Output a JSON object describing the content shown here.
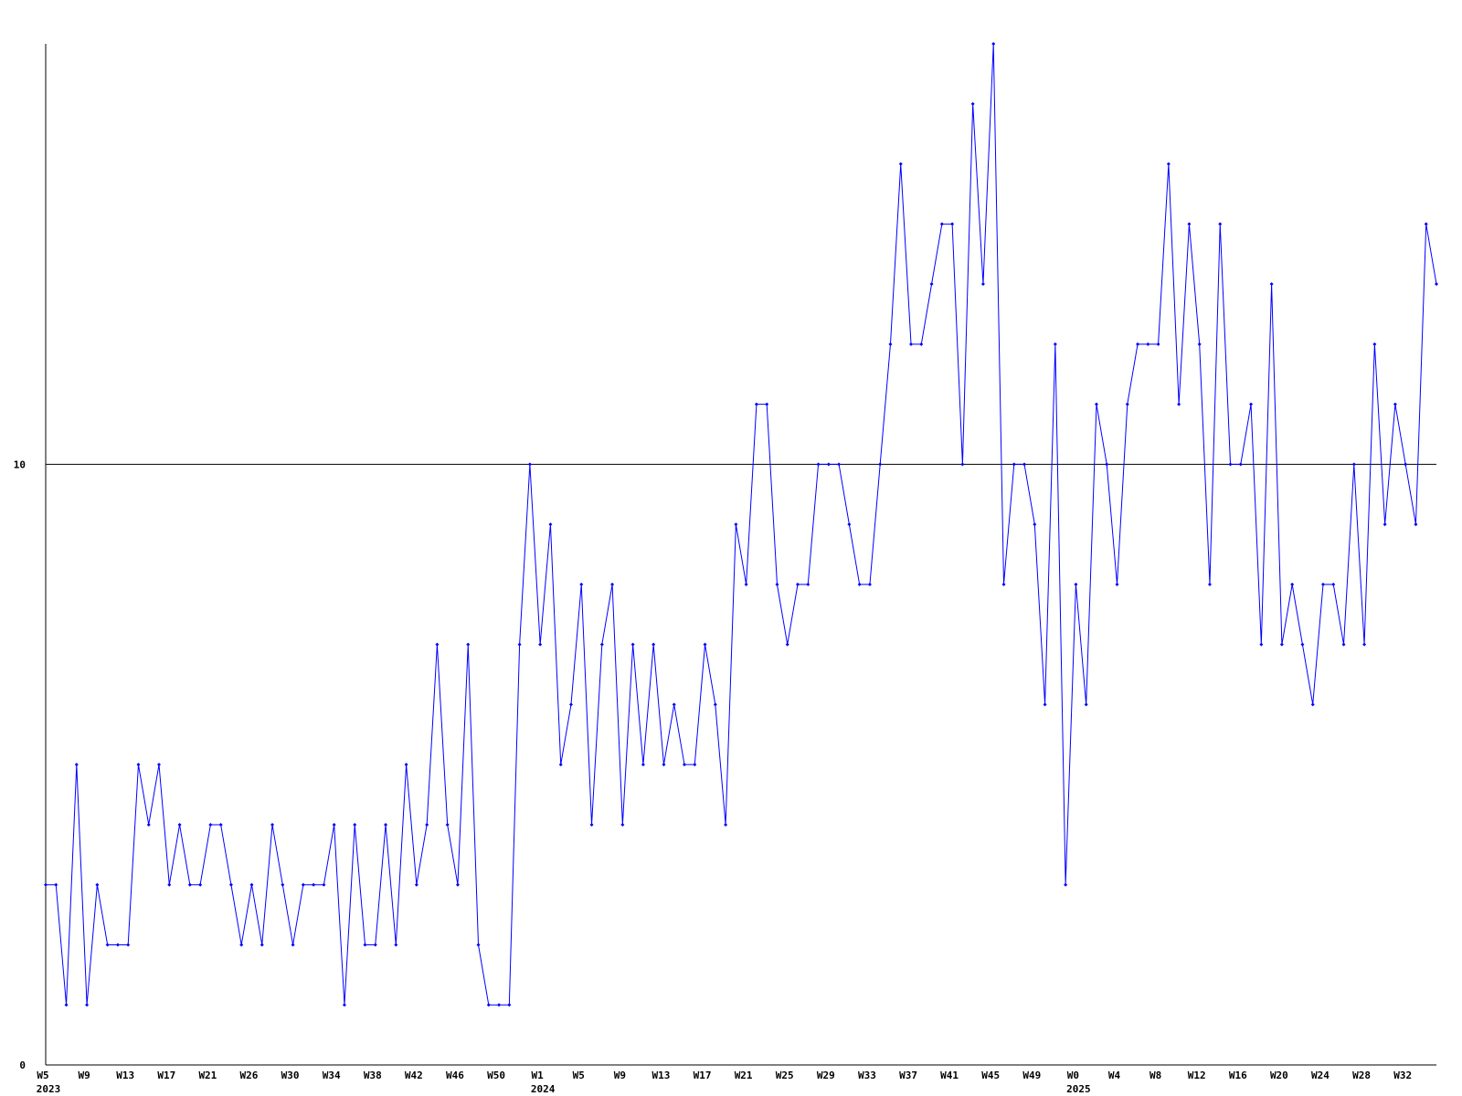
{
  "chart_data": {
    "type": "line",
    "categories": [
      "W5",
      null,
      null,
      null,
      "W9",
      null,
      null,
      null,
      "W13",
      null,
      null,
      null,
      "W17",
      null,
      null,
      null,
      "W21",
      null,
      null,
      null,
      "W26",
      null,
      null,
      null,
      "W30",
      null,
      null,
      null,
      "W34",
      null,
      null,
      null,
      "W38",
      null,
      null,
      null,
      "W42",
      null,
      null,
      null,
      "W46",
      null,
      null,
      null,
      "W50",
      null,
      null,
      null,
      "W1",
      null,
      null,
      null,
      "W5",
      null,
      null,
      null,
      "W9",
      null,
      null,
      null,
      "W13",
      null,
      null,
      null,
      "W17",
      null,
      null,
      null,
      "W21",
      null,
      null,
      null,
      "W25",
      null,
      null,
      null,
      "W29",
      null,
      null,
      null,
      "W33",
      null,
      null,
      null,
      "W37",
      null,
      null,
      null,
      "W41",
      null,
      null,
      null,
      "W45",
      null,
      null,
      null,
      "W49",
      null,
      null,
      null,
      "W0",
      null,
      null,
      null,
      "W4",
      null,
      null,
      null,
      "W8",
      null,
      null,
      null,
      "W12",
      null,
      null,
      null,
      "W16",
      null,
      null,
      null,
      "W20",
      null,
      null,
      null,
      "W24",
      null,
      null,
      null,
      "W28",
      null,
      null,
      null,
      "W32",
      null,
      null,
      null
    ],
    "x_years": [
      "2023",
      null,
      null,
      null,
      null,
      null,
      null,
      null,
      null,
      null,
      null,
      null,
      null,
      null,
      null,
      null,
      null,
      null,
      null,
      null,
      null,
      null,
      null,
      null,
      null,
      null,
      null,
      null,
      null,
      null,
      null,
      null,
      null,
      null,
      null,
      null,
      null,
      null,
      null,
      null,
      null,
      null,
      null,
      null,
      null,
      null,
      null,
      null,
      "2024",
      null,
      null,
      null,
      null,
      null,
      null,
      null,
      null,
      null,
      null,
      null,
      null,
      null,
      null,
      null,
      null,
      null,
      null,
      null,
      null,
      null,
      null,
      null,
      null,
      null,
      null,
      null,
      null,
      null,
      null,
      null,
      null,
      null,
      null,
      null,
      null,
      null,
      null,
      null,
      null,
      null,
      null,
      null,
      null,
      null,
      null,
      null,
      null,
      null,
      null,
      null,
      "2025",
      null,
      null,
      null,
      null,
      null,
      null,
      null,
      null,
      null,
      null,
      null,
      null,
      null,
      null,
      null,
      null,
      null,
      null,
      null,
      null,
      null,
      null,
      null,
      null,
      null,
      null,
      null,
      null,
      null,
      null,
      null,
      null,
      null,
      null,
      null
    ],
    "series": [
      {
        "color": "#0000ff",
        "values": [
          3,
          3,
          1,
          5,
          1,
          3,
          2,
          2,
          2,
          5,
          4,
          5,
          3,
          4,
          3,
          3,
          4,
          4,
          3,
          2,
          3,
          2,
          4,
          3,
          2,
          3,
          3,
          3,
          4,
          1,
          4,
          2,
          2,
          4,
          2,
          5,
          3,
          4,
          7,
          4,
          3,
          7,
          2,
          1,
          1,
          1,
          7,
          10,
          7,
          9,
          5,
          6,
          8,
          4,
          7,
          8,
          4,
          7,
          5,
          7,
          5,
          6,
          5,
          5,
          7,
          6,
          4,
          9,
          8,
          11,
          11,
          8,
          7,
          8,
          8,
          10,
          10,
          10,
          9,
          8,
          8,
          10,
          12,
          15,
          12,
          12,
          13,
          14,
          14,
          10,
          16,
          13,
          17,
          8,
          10,
          10,
          9,
          6,
          12,
          3,
          8,
          6,
          11,
          10,
          8,
          11,
          12,
          12,
          12,
          15,
          11,
          14,
          12,
          8,
          14,
          10,
          10,
          11,
          7,
          13,
          7,
          8,
          7,
          6,
          8,
          8,
          7,
          10,
          7,
          12,
          9,
          11,
          10,
          9,
          14,
          13
        ]
      }
    ],
    "ylim": [
      0,
      17
    ],
    "yticks": [
      0,
      10
    ],
    "grid": true
  }
}
